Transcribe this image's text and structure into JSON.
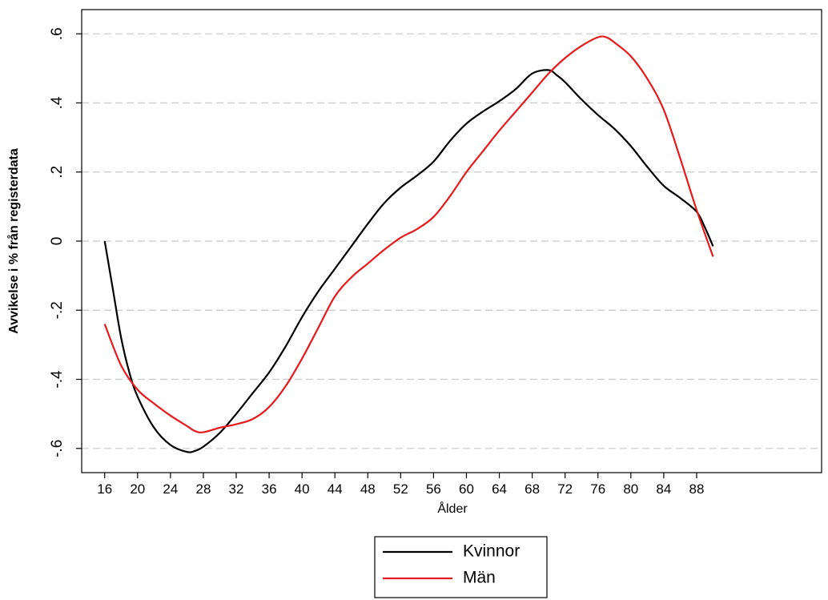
{
  "chart_data": {
    "type": "line",
    "x_label": "Ålder",
    "y_label": "Avvikelse i % från registerdata",
    "xlim": [
      13.2,
      103.2
    ],
    "xticks": [
      16,
      20,
      24,
      28,
      32,
      36,
      40,
      44,
      48,
      52,
      56,
      60,
      64,
      68,
      72,
      76,
      80,
      84,
      88
    ],
    "ylim": [
      -0.67,
      0.67
    ],
    "yticks": [
      {
        "value": -0.6,
        "label": "-.6"
      },
      {
        "value": -0.4,
        "label": "-.4"
      },
      {
        "value": -0.2,
        "label": "-.2"
      },
      0,
      {
        "value": 0.2,
        "label": ".2"
      },
      {
        "value": 0.4,
        "label": ".4"
      },
      {
        "value": 0.6,
        "label": ".6"
      }
    ],
    "grid": true,
    "legend": "bottom",
    "series": [
      {
        "name": "Kvinnor",
        "color": "#000000",
        "x": [
          16,
          17,
          18,
          19,
          20,
          22,
          24,
          26,
          27,
          28,
          30,
          32,
          34,
          36,
          38,
          40,
          42,
          44,
          46,
          48,
          50,
          52,
          54,
          56,
          58,
          60,
          62,
          64,
          66,
          68,
          70,
          71,
          72,
          74,
          76,
          78,
          80,
          82,
          84,
          86,
          88,
          89,
          90
        ],
        "values": [
          0,
          -0.14,
          -0.28,
          -0.38,
          -0.45,
          -0.54,
          -0.59,
          -0.61,
          -0.607,
          -0.595,
          -0.555,
          -0.5,
          -0.44,
          -0.38,
          -0.305,
          -0.22,
          -0.145,
          -0.08,
          -0.015,
          0.05,
          0.11,
          0.155,
          0.19,
          0.23,
          0.29,
          0.34,
          0.375,
          0.405,
          0.44,
          0.485,
          0.495,
          0.48,
          0.46,
          0.41,
          0.365,
          0.325,
          0.275,
          0.215,
          0.16,
          0.125,
          0.085,
          0.04,
          -0.015
        ]
      },
      {
        "name": "Män",
        "color": "#e8191b",
        "x": [
          16,
          18,
          20,
          22,
          24,
          26,
          27,
          28,
          30,
          32,
          34,
          36,
          38,
          40,
          42,
          44,
          46,
          48,
          50,
          52,
          54,
          56,
          58,
          60,
          62,
          64,
          66,
          68,
          70,
          72,
          74,
          76,
          77,
          78,
          80,
          82,
          84,
          86,
          88,
          90
        ],
        "values": [
          -0.24,
          -0.36,
          -0.43,
          -0.47,
          -0.505,
          -0.535,
          -0.55,
          -0.553,
          -0.54,
          -0.53,
          -0.515,
          -0.48,
          -0.42,
          -0.34,
          -0.25,
          -0.16,
          -0.105,
          -0.065,
          -0.025,
          0.01,
          0.035,
          0.07,
          0.13,
          0.2,
          0.26,
          0.32,
          0.375,
          0.43,
          0.485,
          0.53,
          0.565,
          0.59,
          0.59,
          0.575,
          0.535,
          0.47,
          0.38,
          0.24,
          0.09,
          -0.045
        ]
      }
    ]
  }
}
